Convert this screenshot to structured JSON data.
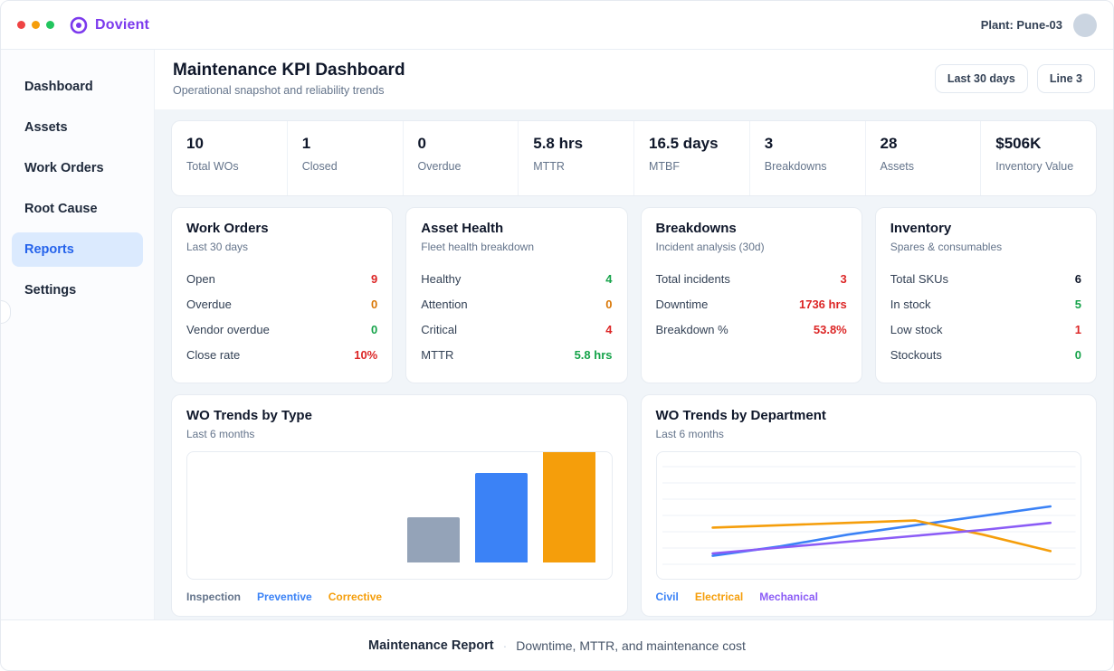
{
  "colors": {
    "brand": "#7c3aed",
    "accent": "#2563eb"
  },
  "topbar": {
    "brand": "Dovient",
    "plant_label": "Plant: Pune-03"
  },
  "sidebar": {
    "items": [
      {
        "label": "Dashboard",
        "active": false
      },
      {
        "label": "Assets",
        "active": false
      },
      {
        "label": "Work Orders",
        "active": false
      },
      {
        "label": "Root Cause",
        "active": false
      },
      {
        "label": "Reports",
        "active": true
      },
      {
        "label": "Settings",
        "active": false
      }
    ]
  },
  "header": {
    "title": "Maintenance KPI Dashboard",
    "subtitle": "Operational snapshot and reliability trends",
    "range_button": "Last 30 days",
    "line_button": "Line 3"
  },
  "kpis": [
    {
      "value": "10",
      "label": "Total WOs"
    },
    {
      "value": "1",
      "label": "Closed"
    },
    {
      "value": "0",
      "label": "Overdue"
    },
    {
      "value": "5.8 hrs",
      "label": "MTTR"
    },
    {
      "value": "16.5 days",
      "label": "MTBF"
    },
    {
      "value": "3",
      "label": "Breakdowns"
    },
    {
      "value": "28",
      "label": "Assets"
    },
    {
      "value": "$506K",
      "label": "Inventory Value"
    }
  ],
  "cards": [
    {
      "title": "Work Orders",
      "subtitle": "Last 30 days",
      "rows": [
        {
          "label": "Open",
          "value": "9",
          "color": "#dc2626"
        },
        {
          "label": "Overdue",
          "value": "0",
          "color": "#d97706"
        },
        {
          "label": "Vendor overdue",
          "value": "0",
          "color": "#16a34a"
        },
        {
          "label": "Close rate",
          "value": "10%",
          "color": "#dc2626"
        }
      ]
    },
    {
      "title": "Asset Health",
      "subtitle": "Fleet health breakdown",
      "rows": [
        {
          "label": "Healthy",
          "value": "4",
          "color": "#16a34a"
        },
        {
          "label": "Attention",
          "value": "0",
          "color": "#d97706"
        },
        {
          "label": "Critical",
          "value": "4",
          "color": "#dc2626"
        },
        {
          "label": "MTTR",
          "value": "5.8 hrs",
          "color": "#16a34a"
        }
      ]
    },
    {
      "title": "Breakdowns",
      "subtitle": "Incident analysis (30d)",
      "rows": [
        {
          "label": "Total incidents",
          "value": "3",
          "color": "#dc2626"
        },
        {
          "label": "Downtime",
          "value": "1736 hrs",
          "color": "#dc2626"
        },
        {
          "label": "Breakdown %",
          "value": "53.8%",
          "color": "#dc2626"
        }
      ]
    },
    {
      "title": "Inventory",
      "subtitle": "Spares & consumables",
      "rows": [
        {
          "label": "Total SKUs",
          "value": "6",
          "color": "#0f172a"
        },
        {
          "label": "In stock",
          "value": "5",
          "color": "#16a34a"
        },
        {
          "label": "Low stock",
          "value": "1",
          "color": "#dc2626"
        },
        {
          "label": "Stockouts",
          "value": "0",
          "color": "#16a34a"
        }
      ]
    }
  ],
  "chart_data": [
    {
      "type": "bar",
      "title": "WO Trends by Type",
      "subtitle": "Last 6 months",
      "ylim": [
        0,
        5
      ],
      "series": [
        {
          "name": "Inspection",
          "value": 2,
          "color": "#94a3b8",
          "legend_color": "#64748b"
        },
        {
          "name": "Preventive",
          "value": 4,
          "color": "#3b82f6",
          "legend_color": "#3b82f6"
        },
        {
          "name": "Corrective",
          "value": 5,
          "color": "#f59e0b",
          "legend_color": "#f59e0b"
        }
      ]
    },
    {
      "type": "line",
      "title": "WO Trends by Department",
      "subtitle": "Last 6 months",
      "ylim": [
        0,
        4
      ],
      "points": 6,
      "grid": true,
      "legend_position": "bottom",
      "series": [
        {
          "name": "Civil",
          "color": "#3b82f6",
          "values": [
            0.9,
            1.3,
            1.8,
            2.2,
            2.6,
            3.0
          ]
        },
        {
          "name": "Electrical",
          "color": "#f59e0b",
          "values": [
            2.1,
            2.2,
            2.3,
            2.4,
            1.8,
            1.1
          ]
        },
        {
          "name": "Mechanical",
          "color": "#8b5cf6",
          "values": [
            1.0,
            1.25,
            1.5,
            1.75,
            2.0,
            2.3
          ]
        }
      ]
    }
  ],
  "footer": {
    "report_name": "Maintenance Report",
    "separator": "·",
    "description": "Downtime, MTTR, and maintenance cost"
  }
}
